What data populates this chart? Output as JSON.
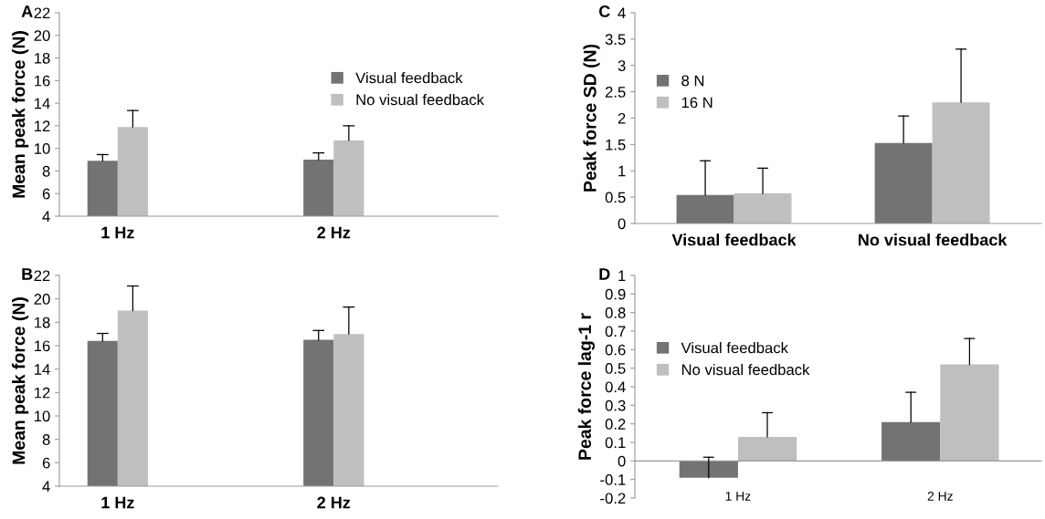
{
  "chart_data": [
    {
      "type": "bar",
      "categories": [
        "1 Hz",
        "2 Hz"
      ],
      "ylabel": "Mean peak force (N)",
      "annotations": [
        "A"
      ],
      "ylim": [
        4,
        22
      ],
      "yticks": [
        4,
        6,
        8,
        10,
        12,
        14,
        16,
        18,
        20,
        22
      ],
      "legend": "right",
      "grid": false,
      "series": [
        {
          "name": "Visual feedback",
          "color": "#737373",
          "values": [
            8.9,
            9.0
          ],
          "errors": [
            [
              8.9,
              9.45
            ],
            [
              9.0,
              9.6
            ]
          ]
        },
        {
          "name": "No visual feedback",
          "color": "#bfbfbf",
          "values": [
            11.9,
            10.7
          ],
          "errors": [
            [
              11.9,
              13.35
            ],
            [
              10.7,
              12.0
            ]
          ]
        }
      ]
    },
    {
      "type": "bar",
      "categories": [
        "1 Hz",
        "2 Hz"
      ],
      "ylabel": "Mean peak force (N)",
      "annotations": [
        "B"
      ],
      "ylim": [
        4,
        22
      ],
      "yticks": [
        4,
        6,
        8,
        10,
        12,
        14,
        16,
        18,
        20,
        22
      ],
      "grid": false,
      "series": [
        {
          "color": "#737373",
          "values": [
            16.4,
            16.5
          ],
          "errors": [
            [
              16.4,
              17.05
            ],
            [
              16.5,
              17.3
            ]
          ]
        },
        {
          "color": "#bfbfbf",
          "values": [
            19.0,
            17.0
          ],
          "errors": [
            [
              19.0,
              21.1
            ],
            [
              17.0,
              19.3
            ]
          ]
        }
      ]
    },
    {
      "type": "bar",
      "categories": [
        "Visual feedback",
        "No visual feedback"
      ],
      "ylabel": "Peak force SD (N)",
      "annotations": [
        "C"
      ],
      "ylim": [
        0,
        4
      ],
      "yticks": [
        0,
        0.5,
        1,
        1.5,
        2,
        2.5,
        3,
        3.5,
        4
      ],
      "legend": "left",
      "grid": false,
      "series": [
        {
          "name": "8 N",
          "color": "#737373",
          "values": [
            0.54,
            1.53
          ],
          "errors": [
            [
              0.54,
              1.19
            ],
            [
              1.53,
              2.04
            ]
          ]
        },
        {
          "name": "16 N",
          "color": "#bfbfbf",
          "values": [
            0.57,
            2.3
          ],
          "errors": [
            [
              0.57,
              1.05
            ],
            [
              2.3,
              3.31
            ]
          ]
        }
      ]
    },
    {
      "type": "bar",
      "categories": [
        "1 Hz",
        "2 Hz"
      ],
      "ylabel": "Peak force lag-1 r",
      "annotations": [
        "D"
      ],
      "ylim": [
        -0.2,
        1
      ],
      "yticks": [
        -0.2,
        -0.1,
        0,
        0.1,
        0.2,
        0.3,
        0.4,
        0.5,
        0.6,
        0.7,
        0.8,
        0.9,
        1
      ],
      "legend": "left",
      "grid": false,
      "series": [
        {
          "name": "Visual feedback",
          "color": "#737373",
          "values": [
            -0.09,
            0.21
          ],
          "errors": [
            [
              -0.09,
              0.02
            ],
            [
              0.21,
              0.37
            ]
          ]
        },
        {
          "name": "No visual feedback",
          "color": "#bfbfbf",
          "values": [
            0.13,
            0.52
          ],
          "errors": [
            [
              0.13,
              0.26
            ],
            [
              0.52,
              0.66
            ]
          ]
        }
      ]
    }
  ]
}
